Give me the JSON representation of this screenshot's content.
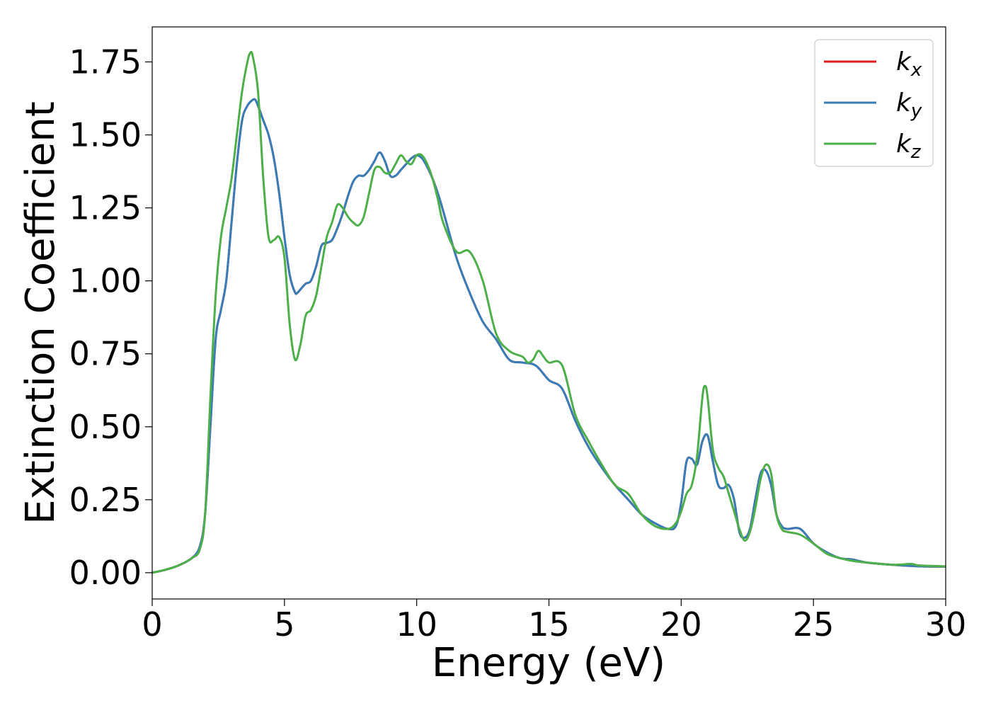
{
  "chart_data": {
    "type": "line",
    "xlabel": "Energy (eV)",
    "ylabel": "Extinction Coefficient",
    "xlim": [
      0,
      30
    ],
    "ylim": [
      -0.09,
      1.87
    ],
    "x_ticks": [
      "0",
      "5",
      "10",
      "15",
      "20",
      "25",
      "30"
    ],
    "x_tick_values": [
      0,
      5,
      10,
      15,
      20,
      25,
      30
    ],
    "y_ticks": [
      "0.00",
      "0.25",
      "0.50",
      "0.75",
      "1.00",
      "1.25",
      "1.50",
      "1.75"
    ],
    "y_tick_values": [
      0,
      0.25,
      0.5,
      0.75,
      1.0,
      1.25,
      1.5,
      1.75
    ],
    "grid": false,
    "legend_position": "top-right",
    "series": [
      {
        "name": "k_x",
        "label_main": "k",
        "label_sub": "x",
        "color": "#e41a1c",
        "x": [
          0,
          0.5,
          1.0,
          1.5,
          1.8,
          2.0,
          2.2,
          2.4,
          2.6,
          2.8,
          3.0,
          3.2,
          3.4,
          3.6,
          3.8,
          3.9,
          4.0,
          4.2,
          4.4,
          4.6,
          4.8,
          5.0,
          5.2,
          5.4,
          5.5,
          5.6,
          5.8,
          6.0,
          6.2,
          6.4,
          6.6,
          6.8,
          7.0,
          7.2,
          7.4,
          7.6,
          7.8,
          8.0,
          8.2,
          8.4,
          8.6,
          8.8,
          9.0,
          9.2,
          9.4,
          9.6,
          9.8,
          10.0,
          10.2,
          10.4,
          10.6,
          10.8,
          11.0,
          11.5,
          12.0,
          12.5,
          13.0,
          13.5,
          14.0,
          14.5,
          15.0,
          15.5,
          16.0,
          16.5,
          17.0,
          17.5,
          18.0,
          18.5,
          19.0,
          19.5,
          19.8,
          20.0,
          20.2,
          20.4,
          20.6,
          20.8,
          21.0,
          21.2,
          21.4,
          21.6,
          21.8,
          22.0,
          22.2,
          22.4,
          22.6,
          22.8,
          23.0,
          23.2,
          23.4,
          23.6,
          23.8,
          24.0,
          24.5,
          25.0,
          25.5,
          26.0,
          26.5,
          27.0,
          28.0,
          29.0,
          30.0
        ],
        "y": [
          0.0,
          0.01,
          0.025,
          0.05,
          0.09,
          0.2,
          0.5,
          0.8,
          0.9,
          1.0,
          1.2,
          1.4,
          1.55,
          1.6,
          1.62,
          1.62,
          1.6,
          1.55,
          1.5,
          1.42,
          1.3,
          1.15,
          1.02,
          0.96,
          0.96,
          0.97,
          0.99,
          1.0,
          1.05,
          1.12,
          1.13,
          1.14,
          1.18,
          1.23,
          1.29,
          1.34,
          1.36,
          1.36,
          1.38,
          1.41,
          1.44,
          1.41,
          1.36,
          1.36,
          1.38,
          1.4,
          1.42,
          1.43,
          1.42,
          1.39,
          1.35,
          1.3,
          1.24,
          1.08,
          0.96,
          0.86,
          0.8,
          0.73,
          0.72,
          0.71,
          0.66,
          0.63,
          0.52,
          0.43,
          0.36,
          0.3,
          0.25,
          0.2,
          0.17,
          0.15,
          0.16,
          0.24,
          0.38,
          0.39,
          0.37,
          0.45,
          0.47,
          0.38,
          0.3,
          0.29,
          0.3,
          0.25,
          0.14,
          0.12,
          0.15,
          0.25,
          0.34,
          0.35,
          0.3,
          0.2,
          0.16,
          0.15,
          0.15,
          0.1,
          0.07,
          0.05,
          0.045,
          0.035,
          0.027,
          0.022,
          0.021
        ]
      },
      {
        "name": "k_y",
        "label_main": "k",
        "label_sub": "y",
        "color": "#377eb8",
        "x": [
          0,
          0.5,
          1.0,
          1.5,
          1.8,
          2.0,
          2.2,
          2.4,
          2.6,
          2.8,
          3.0,
          3.2,
          3.4,
          3.6,
          3.8,
          3.9,
          4.0,
          4.2,
          4.4,
          4.6,
          4.8,
          5.0,
          5.2,
          5.4,
          5.5,
          5.6,
          5.8,
          6.0,
          6.2,
          6.4,
          6.6,
          6.8,
          7.0,
          7.2,
          7.4,
          7.6,
          7.8,
          8.0,
          8.2,
          8.4,
          8.6,
          8.8,
          9.0,
          9.2,
          9.4,
          9.6,
          9.8,
          10.0,
          10.2,
          10.4,
          10.6,
          10.8,
          11.0,
          11.5,
          12.0,
          12.5,
          13.0,
          13.5,
          14.0,
          14.5,
          15.0,
          15.5,
          16.0,
          16.5,
          17.0,
          17.5,
          18.0,
          18.5,
          19.0,
          19.5,
          19.8,
          20.0,
          20.2,
          20.4,
          20.6,
          20.8,
          21.0,
          21.2,
          21.4,
          21.6,
          21.8,
          22.0,
          22.2,
          22.4,
          22.6,
          22.8,
          23.0,
          23.2,
          23.4,
          23.6,
          23.8,
          24.0,
          24.5,
          25.0,
          25.5,
          26.0,
          26.5,
          27.0,
          28.0,
          29.0,
          30.0
        ],
        "y": [
          0.0,
          0.01,
          0.025,
          0.05,
          0.09,
          0.2,
          0.5,
          0.8,
          0.9,
          1.0,
          1.2,
          1.4,
          1.55,
          1.6,
          1.62,
          1.62,
          1.6,
          1.55,
          1.5,
          1.42,
          1.3,
          1.15,
          1.02,
          0.96,
          0.96,
          0.97,
          0.99,
          1.0,
          1.05,
          1.12,
          1.13,
          1.14,
          1.18,
          1.23,
          1.29,
          1.34,
          1.36,
          1.36,
          1.38,
          1.41,
          1.44,
          1.41,
          1.36,
          1.36,
          1.38,
          1.4,
          1.42,
          1.43,
          1.42,
          1.39,
          1.35,
          1.3,
          1.24,
          1.08,
          0.96,
          0.86,
          0.8,
          0.73,
          0.72,
          0.71,
          0.66,
          0.63,
          0.52,
          0.43,
          0.36,
          0.3,
          0.25,
          0.2,
          0.17,
          0.15,
          0.16,
          0.24,
          0.38,
          0.39,
          0.37,
          0.45,
          0.47,
          0.38,
          0.3,
          0.29,
          0.3,
          0.25,
          0.14,
          0.12,
          0.15,
          0.25,
          0.34,
          0.35,
          0.3,
          0.2,
          0.16,
          0.15,
          0.15,
          0.1,
          0.07,
          0.05,
          0.045,
          0.035,
          0.027,
          0.022,
          0.021
        ]
      },
      {
        "name": "k_z",
        "label_main": "k",
        "label_sub": "z",
        "color": "#4daf4a",
        "x": [
          0,
          0.5,
          1.0,
          1.5,
          1.8,
          2.0,
          2.2,
          2.4,
          2.6,
          2.8,
          3.0,
          3.2,
          3.4,
          3.6,
          3.7,
          3.8,
          4.0,
          4.2,
          4.4,
          4.6,
          4.8,
          5.0,
          5.2,
          5.4,
          5.6,
          5.8,
          6.0,
          6.2,
          6.4,
          6.6,
          6.8,
          7.0,
          7.2,
          7.4,
          7.6,
          7.8,
          8.0,
          8.2,
          8.4,
          8.6,
          8.8,
          9.0,
          9.2,
          9.4,
          9.6,
          9.8,
          10.0,
          10.2,
          10.4,
          10.6,
          10.8,
          11.0,
          11.5,
          12.0,
          12.5,
          13.0,
          13.5,
          14.0,
          14.2,
          14.4,
          14.6,
          14.8,
          15.0,
          15.5,
          16.0,
          16.5,
          17.0,
          17.5,
          18.0,
          18.5,
          19.0,
          19.5,
          19.8,
          20.0,
          20.2,
          20.4,
          20.6,
          20.8,
          20.9,
          21.0,
          21.2,
          21.4,
          21.6,
          21.8,
          22.0,
          22.2,
          22.4,
          22.6,
          22.8,
          23.0,
          23.2,
          23.4,
          23.6,
          23.8,
          24.0,
          24.5,
          25.0,
          25.5,
          26.0,
          26.5,
          27.0,
          28.0,
          28.7,
          29.0,
          30.0
        ],
        "y": [
          0.0,
          0.01,
          0.025,
          0.05,
          0.08,
          0.2,
          0.6,
          0.95,
          1.15,
          1.25,
          1.35,
          1.5,
          1.65,
          1.75,
          1.78,
          1.77,
          1.65,
          1.35,
          1.15,
          1.14,
          1.15,
          1.08,
          0.85,
          0.73,
          0.78,
          0.88,
          0.9,
          0.95,
          1.05,
          1.15,
          1.2,
          1.26,
          1.25,
          1.22,
          1.2,
          1.19,
          1.22,
          1.3,
          1.38,
          1.39,
          1.37,
          1.37,
          1.4,
          1.43,
          1.41,
          1.4,
          1.43,
          1.43,
          1.4,
          1.35,
          1.28,
          1.2,
          1.1,
          1.1,
          1.0,
          0.82,
          0.76,
          0.74,
          0.72,
          0.73,
          0.76,
          0.74,
          0.72,
          0.71,
          0.54,
          0.45,
          0.37,
          0.3,
          0.27,
          0.2,
          0.16,
          0.15,
          0.17,
          0.21,
          0.27,
          0.3,
          0.4,
          0.6,
          0.64,
          0.6,
          0.42,
          0.36,
          0.33,
          0.27,
          0.21,
          0.15,
          0.11,
          0.14,
          0.22,
          0.32,
          0.37,
          0.34,
          0.2,
          0.15,
          0.14,
          0.13,
          0.1,
          0.065,
          0.05,
          0.04,
          0.035,
          0.027,
          0.03,
          0.025,
          0.022
        ]
      }
    ]
  }
}
